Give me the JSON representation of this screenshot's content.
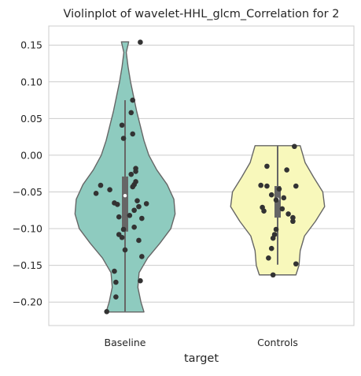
{
  "chart_data": {
    "type": "violin",
    "title": "Violinplot of wavelet-HHL_glcm_Correlation for 2",
    "xlabel": "target",
    "ylabel": "",
    "categories": [
      "Baseline",
      "Controls"
    ],
    "ylim": [
      -0.232,
      0.176
    ],
    "yticks": [
      -0.2,
      -0.15,
      -0.1,
      -0.05,
      0.0,
      0.05,
      0.1,
      0.15
    ],
    "ytick_labels": [
      "−0.20",
      "−0.15",
      "−0.10",
      "−0.05",
      "0.00",
      "0.05",
      "0.10",
      "0.15"
    ],
    "grid": "horizontal",
    "colors": {
      "Baseline": "#8ecbbf",
      "Controls": "#f8f8bb",
      "outline": "#666666",
      "points": "#333333",
      "grid": "#cccccc",
      "box": "#666666"
    },
    "violins": [
      {
        "category": "Baseline",
        "box": {
          "whisker_low": -0.213,
          "q1": -0.104,
          "median": -0.055,
          "q3": -0.029,
          "whisker_high": 0.075
        },
        "profile": [
          [
            -0.2135,
            0.31
          ],
          [
            -0.2,
            0.26
          ],
          [
            -0.18,
            0.21
          ],
          [
            -0.16,
            0.23
          ],
          [
            -0.14,
            0.37
          ],
          [
            -0.12,
            0.57
          ],
          [
            -0.1,
            0.75
          ],
          [
            -0.08,
            0.82
          ],
          [
            -0.06,
            0.8
          ],
          [
            -0.04,
            0.69
          ],
          [
            -0.02,
            0.52
          ],
          [
            0.0,
            0.39
          ],
          [
            0.02,
            0.31
          ],
          [
            0.04,
            0.25
          ],
          [
            0.06,
            0.19
          ],
          [
            0.08,
            0.14
          ],
          [
            0.1,
            0.09
          ],
          [
            0.12,
            0.05
          ],
          [
            0.14,
            0.02
          ],
          [
            0.1545,
            0.06
          ]
        ],
        "points": [
          [
            0.1,
            0.154
          ],
          [
            0.05,
            0.075
          ],
          [
            0.04,
            0.058
          ],
          [
            -0.02,
            0.041
          ],
          [
            0.05,
            0.029
          ],
          [
            -0.01,
            0.023
          ],
          [
            0.07,
            -0.018
          ],
          [
            0.07,
            -0.022
          ],
          [
            0.04,
            -0.026
          ],
          [
            0.07,
            -0.036
          ],
          [
            0.06,
            -0.04
          ],
          [
            -0.16,
            -0.041
          ],
          [
            0.05,
            -0.043
          ],
          [
            -0.1,
            -0.047
          ],
          [
            -0.19,
            -0.052
          ],
          [
            0.08,
            -0.062
          ],
          [
            -0.07,
            -0.065
          ],
          [
            0.14,
            -0.066
          ],
          [
            -0.05,
            -0.067
          ],
          [
            0.09,
            -0.07
          ],
          [
            0.06,
            -0.075
          ],
          [
            0.03,
            -0.082
          ],
          [
            -0.04,
            -0.084
          ],
          [
            0.11,
            -0.086
          ],
          [
            0.06,
            -0.098
          ],
          [
            -0.01,
            -0.101
          ],
          [
            -0.04,
            -0.108
          ],
          [
            -0.02,
            -0.112
          ],
          [
            0.09,
            -0.116
          ],
          [
            0.0,
            -0.129
          ],
          [
            0.11,
            -0.138
          ],
          [
            -0.07,
            -0.158
          ],
          [
            -0.06,
            -0.173
          ],
          [
            0.1,
            -0.171
          ],
          [
            -0.06,
            -0.193
          ],
          [
            -0.12,
            -0.213
          ]
        ]
      },
      {
        "category": "Controls",
        "box": {
          "whisker_low": -0.149,
          "q1": -0.085,
          "median": -0.06,
          "q3": -0.042,
          "whisker_high": 0.013
        },
        "profile": [
          [
            -0.163,
            0.3
          ],
          [
            -0.15,
            0.35
          ],
          [
            -0.13,
            0.37
          ],
          [
            -0.11,
            0.44
          ],
          [
            -0.09,
            0.62
          ],
          [
            -0.07,
            0.77
          ],
          [
            -0.05,
            0.74
          ],
          [
            -0.03,
            0.59
          ],
          [
            -0.01,
            0.45
          ],
          [
            0.013,
            0.37
          ]
        ],
        "points": [
          [
            0.11,
            0.012
          ],
          [
            -0.07,
            -0.015
          ],
          [
            0.06,
            -0.02
          ],
          [
            -0.11,
            -0.041
          ],
          [
            -0.07,
            -0.042
          ],
          [
            0.12,
            -0.042
          ],
          [
            0.01,
            -0.046
          ],
          [
            -0.04,
            -0.054
          ],
          [
            0.04,
            -0.058
          ],
          [
            -0.01,
            -0.061
          ],
          [
            -0.1,
            -0.071
          ],
          [
            0.03,
            -0.073
          ],
          [
            -0.09,
            -0.076
          ],
          [
            0.07,
            -0.08
          ],
          [
            0.1,
            -0.085
          ],
          [
            0.1,
            -0.09
          ],
          [
            -0.01,
            -0.101
          ],
          [
            -0.02,
            -0.108
          ],
          [
            -0.03,
            -0.113
          ],
          [
            -0.04,
            -0.127
          ],
          [
            -0.06,
            -0.14
          ],
          [
            0.12,
            -0.148
          ],
          [
            -0.03,
            -0.163
          ]
        ]
      }
    ]
  }
}
